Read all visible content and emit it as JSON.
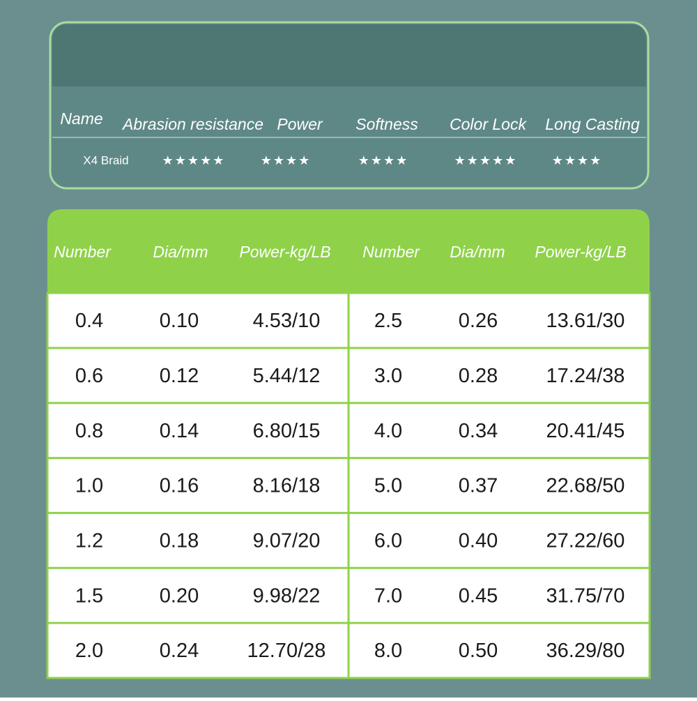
{
  "ratings": {
    "headers": [
      "Name",
      "Abrasion resistance",
      "Power",
      "Softness",
      "Color Lock",
      "Long Casting"
    ],
    "rows": [
      [
        "X4 Braid",
        "★★★★★",
        "★★★★",
        "★★★★",
        "★★★★★",
        "★★★★"
      ]
    ]
  },
  "specs": {
    "headers": [
      "Number",
      "Dia/mm",
      "Power-kg/LB",
      "Number",
      "Dia/mm",
      "Power-kg/LB"
    ],
    "rows": [
      [
        "0.4",
        "0.10",
        "4.53/10",
        "2.5",
        "0.26",
        "13.61/30"
      ],
      [
        "0.6",
        "0.12",
        "5.44/12",
        "3.0",
        "0.28",
        "17.24/38"
      ],
      [
        "0.8",
        "0.14",
        "6.80/15",
        "4.0",
        "0.34",
        "20.41/45"
      ],
      [
        "1.0",
        "0.16",
        "8.16/18",
        "5.0",
        "0.37",
        "22.68/50"
      ],
      [
        "1.2",
        "0.18",
        "9.07/20",
        "6.0",
        "0.40",
        "27.22/60"
      ],
      [
        "1.5",
        "0.20",
        "9.98/22",
        "7.0",
        "0.45",
        "31.75/70"
      ],
      [
        "2.0",
        "0.24",
        "12.70/28",
        "8.0",
        "0.50",
        "36.29/80"
      ]
    ]
  }
}
